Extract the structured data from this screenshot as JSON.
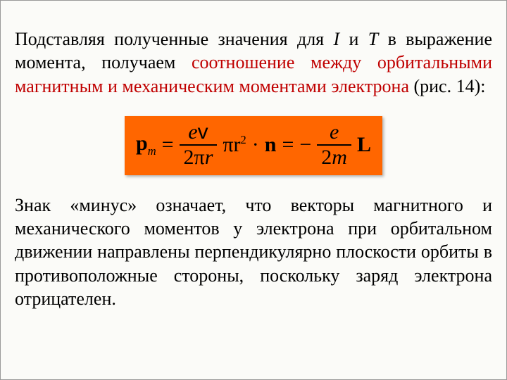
{
  "paragraph1": {
    "prefix": "Подставляя полученные значения для ",
    "var1": "I",
    "mid1": " и ",
    "var2": "T",
    "mid2": " в выражение момента, получаем ",
    "redPart": "соотношение между орбитальными магнитным и механическим моментами электрона",
    "suffix": " (рис. 14):"
  },
  "formula": {
    "background": "#ff6600",
    "lhsSymbol": "p",
    "lhsSubscript": "m",
    "eq1": "=",
    "frac1": {
      "numLeft": "e",
      "numRight": "v",
      "denLeft": "2π",
      "denRight": "r"
    },
    "afterFrac1_pi_r": "πr",
    "afterFrac1_exp": "2",
    "dot": "·",
    "nSymbol": "n",
    "eq2": "=",
    "minus": "−",
    "frac2": {
      "num": "e",
      "denLeft": "2",
      "denRight": "m"
    },
    "Lsymbol": "L"
  },
  "paragraph2": "Знак «минус» означает, что векторы магнитного и механического моментов у электрона при орбитальном движении направлены перпендикулярно плоскости орбиты в противоположные стороны, поскольку заряд электрона отрицателен."
}
